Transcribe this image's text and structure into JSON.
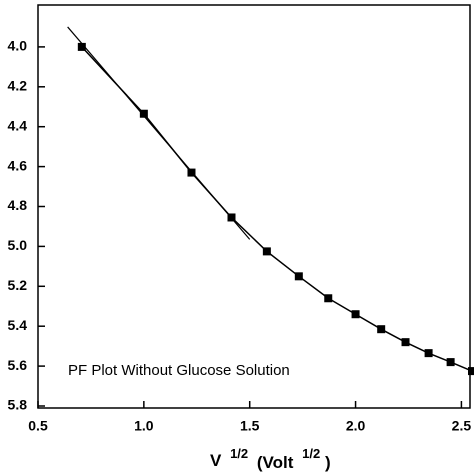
{
  "chart_data": {
    "type": "line",
    "x": [
      0.707,
      1.0,
      1.225,
      1.414,
      1.581,
      1.732,
      1.871,
      2.0,
      2.121,
      2.236,
      2.345,
      2.449,
      2.55
    ],
    "values": [
      4.0,
      4.335,
      4.63,
      4.855,
      5.025,
      5.15,
      5.26,
      5.34,
      5.415,
      5.48,
      5.535,
      5.58,
      5.625
    ],
    "fit_line": {
      "x": [
        0.64,
        1.5
      ],
      "values": [
        3.9,
        4.965
      ]
    },
    "color": "#000000",
    "xlim": [
      0.5,
      2.55
    ],
    "ylim": [
      3.8,
      5.8
    ],
    "y_inverted": true,
    "xticks": [
      0.5,
      {
        "value": 1,
        "label": "1.0"
      },
      1.5,
      {
        "value": 2,
        "label": "2.0"
      },
      2.5
    ],
    "yticks": [
      {
        "value": 4,
        "label": "4.0"
      },
      4.2,
      4.4,
      4.6,
      4.8,
      {
        "value": 5,
        "label": "5.0"
      },
      5.2,
      5.4,
      5.6,
      5.8
    ],
    "annotation": "PF Plot Without Glucose Solution",
    "x_label": {
      "base": "V",
      "sup": "1/2",
      "unit": "(Volt",
      "unit_sup": "1/2",
      "close": ")"
    }
  }
}
